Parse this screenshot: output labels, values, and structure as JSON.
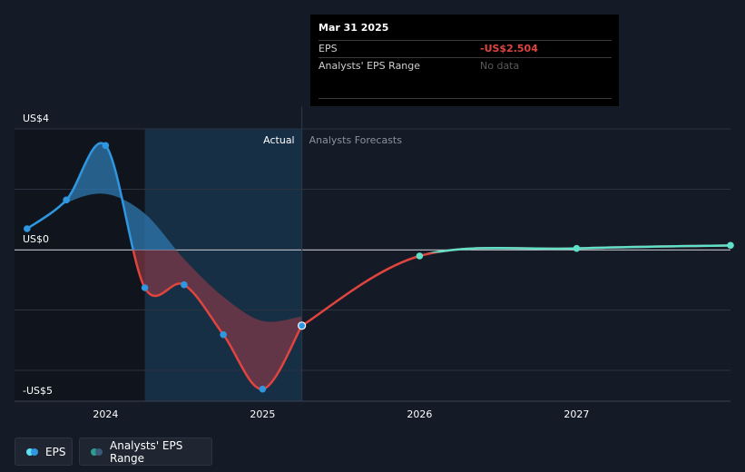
{
  "colors": {
    "background": "#151b26",
    "eps_actual_up": "#2f96e0",
    "eps_actual_down": "#e0443f",
    "eps_forecast": "#5fe0c8",
    "range_fill_pos": "#2f78b0",
    "range_fill_neg": "#8a3a46",
    "actual_highlight": "#17324b"
  },
  "tooltip": {
    "date": "Mar 31 2025",
    "eps_label": "EPS",
    "eps_value": "-US$2.504",
    "range_label": "Analysts' EPS Range",
    "range_value": "No data"
  },
  "legend": {
    "eps_label": "EPS",
    "range_label": "Analysts' EPS Range"
  },
  "chart_data": {
    "type": "line",
    "title": "",
    "y_tick_labels": [
      {
        "value": 4,
        "label": "US$4"
      },
      {
        "value": 0,
        "label": "US$0"
      },
      {
        "value": -5,
        "label": "-US$5"
      }
    ],
    "ylim": [
      -5,
      4
    ],
    "xlim": [
      2023.42,
      2027.98
    ],
    "x_ticks": [
      2024,
      2025,
      2026,
      2027
    ],
    "x_tick_labels": [
      "2024",
      "2025",
      "2026",
      "2027"
    ],
    "region_labels": {
      "actual": "Actual",
      "forecast": "Analysts Forecasts"
    },
    "actual_region": [
      2024.25,
      2025.25
    ],
    "shaded_history": [
      2023.42,
      2024.25
    ],
    "series": [
      {
        "name": "EPS",
        "kind": "actual",
        "x": [
          2023.5,
          2023.75,
          2024.0,
          2024.25,
          2024.5,
          2024.75,
          2025.0,
          2025.25
        ],
        "y": [
          0.7,
          1.65,
          3.45,
          -1.25,
          -1.15,
          -2.8,
          -4.6,
          -2.504
        ]
      },
      {
        "name": "EPS Forecast",
        "kind": "forecast",
        "x": [
          2025.25,
          2026.0,
          2027.0,
          2028.0
        ],
        "y": [
          -2.504,
          -0.2,
          0.05,
          0.15
        ]
      },
      {
        "name": "Analysts' EPS Range",
        "kind": "range_band",
        "x": [
          2023.5,
          2023.75,
          2024.0,
          2024.25,
          2024.5,
          2024.75,
          2025.0,
          2025.25
        ],
        "y": [
          0.7,
          1.55,
          1.85,
          1.2,
          -0.3,
          -1.55,
          -2.35,
          -2.2
        ]
      }
    ]
  }
}
